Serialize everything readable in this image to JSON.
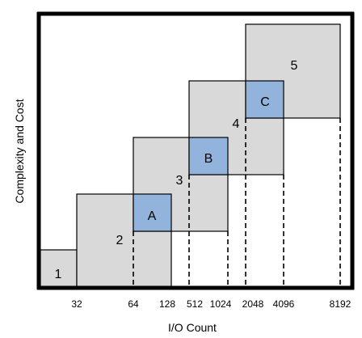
{
  "diagram": {
    "xlabel": "I/O Count",
    "ylabel": "Complexity and Cost",
    "x_ticks": [
      "32",
      "64",
      "128",
      "512",
      "1024",
      "2048",
      "4096",
      "8192"
    ],
    "tiers": [
      {
        "label": "1"
      },
      {
        "label": "2"
      },
      {
        "label": "3"
      },
      {
        "label": "4"
      },
      {
        "label": "5"
      }
    ],
    "overlaps": [
      {
        "label": "A"
      },
      {
        "label": "B"
      },
      {
        "label": "C"
      }
    ],
    "colors": {
      "tier_fill": "#d9d9d9",
      "overlap_fill": "#92b4dc",
      "stroke": "#000000"
    }
  }
}
